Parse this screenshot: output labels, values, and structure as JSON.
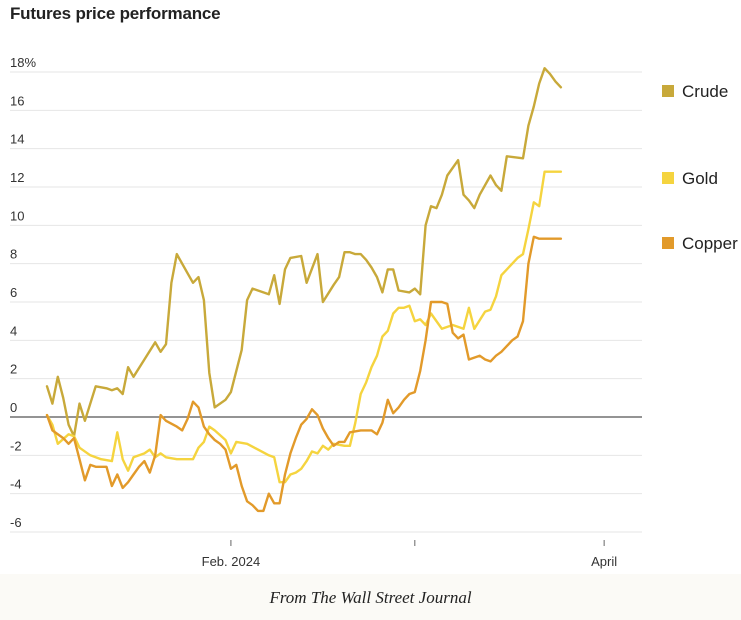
{
  "title": "Futures price performance",
  "credit": "From The Wall Street Journal",
  "colors": {
    "Crude": "#c8a93a",
    "Gold": "#f5d43f",
    "Copper": "#e29a2a",
    "gridline": "#e6e6e6",
    "zeroline": "#555555"
  },
  "chart_data": {
    "type": "line",
    "title": "Futures price performance",
    "xlabel": "",
    "ylabel": "",
    "ylim": [
      -6,
      18
    ],
    "yticks": [
      "18%",
      "16",
      "14",
      "12",
      "10",
      "8",
      "6",
      "4",
      "2",
      "0",
      "-2",
      "-4",
      "-6"
    ],
    "yticks_values": [
      18,
      16,
      14,
      12,
      10,
      8,
      6,
      4,
      2,
      0,
      -2,
      -4,
      -6
    ],
    "xticks": [
      "Feb. 2024",
      "",
      "April"
    ],
    "xticks_values": [
      34,
      68,
      103
    ],
    "x_range": [
      0,
      110
    ],
    "grid": true,
    "legend": "right",
    "series": [
      {
        "name": "Crude",
        "points": [
          [
            0,
            1.6
          ],
          [
            1,
            0.7
          ],
          [
            2,
            2.1
          ],
          [
            3,
            1.0
          ],
          [
            4,
            -0.4
          ],
          [
            5,
            -1.0
          ],
          [
            6,
            0.7
          ],
          [
            7,
            -0.2
          ],
          [
            9,
            1.6
          ],
          [
            11,
            1.5
          ],
          [
            12,
            1.4
          ],
          [
            13,
            1.5
          ],
          [
            14,
            1.2
          ],
          [
            15,
            2.6
          ],
          [
            16,
            2.1
          ],
          [
            18,
            3.0
          ],
          [
            20,
            3.9
          ],
          [
            21,
            3.4
          ],
          [
            22,
            3.8
          ],
          [
            23,
            7.0
          ],
          [
            24,
            8.5
          ],
          [
            26,
            7.5
          ],
          [
            27,
            7.0
          ],
          [
            28,
            7.3
          ],
          [
            29,
            6.1
          ],
          [
            30,
            2.3
          ],
          [
            31,
            0.5
          ],
          [
            33,
            0.9
          ],
          [
            34,
            1.3
          ],
          [
            36,
            3.5
          ],
          [
            37,
            6.1
          ],
          [
            38,
            6.7
          ],
          [
            40,
            6.5
          ],
          [
            41,
            6.4
          ],
          [
            42,
            7.4
          ],
          [
            43,
            5.9
          ],
          [
            44,
            7.7
          ],
          [
            45,
            8.3
          ],
          [
            47,
            8.4
          ],
          [
            48,
            7.0
          ],
          [
            50,
            8.5
          ],
          [
            51,
            6.0
          ],
          [
            53,
            6.9
          ],
          [
            54,
            7.3
          ],
          [
            55,
            8.6
          ],
          [
            56,
            8.6
          ],
          [
            57,
            8.5
          ],
          [
            58,
            8.5
          ],
          [
            59,
            8.2
          ],
          [
            60,
            7.8
          ],
          [
            61,
            7.3
          ],
          [
            62,
            6.5
          ],
          [
            63,
            7.7
          ],
          [
            64,
            7.7
          ],
          [
            65,
            6.6
          ],
          [
            67,
            6.5
          ],
          [
            68,
            6.7
          ],
          [
            69,
            6.4
          ],
          [
            70,
            10.0
          ],
          [
            71,
            11.0
          ],
          [
            72,
            10.9
          ],
          [
            73,
            11.6
          ],
          [
            74,
            12.6
          ],
          [
            76,
            13.4
          ],
          [
            77,
            11.6
          ],
          [
            78,
            11.3
          ],
          [
            79,
            10.9
          ],
          [
            80,
            11.6
          ],
          [
            82,
            12.6
          ],
          [
            83,
            12.1
          ],
          [
            84,
            11.8
          ],
          [
            85,
            13.6
          ],
          [
            88,
            13.5
          ],
          [
            89,
            15.2
          ],
          [
            90,
            16.2
          ],
          [
            91,
            17.4
          ],
          [
            92,
            18.2
          ],
          [
            93,
            17.9
          ],
          [
            94,
            17.5
          ],
          [
            95,
            17.2
          ]
        ]
      },
      {
        "name": "Gold",
        "points": [
          [
            0,
            0.1
          ],
          [
            1,
            -0.4
          ],
          [
            2,
            -1.4
          ],
          [
            4,
            -0.9
          ],
          [
            5,
            -1.0
          ],
          [
            6,
            -1.6
          ],
          [
            8,
            -2.0
          ],
          [
            10,
            -2.2
          ],
          [
            12,
            -2.3
          ],
          [
            13,
            -0.8
          ],
          [
            14,
            -2.2
          ],
          [
            15,
            -2.8
          ],
          [
            16,
            -2.1
          ],
          [
            18,
            -1.9
          ],
          [
            19,
            -1.7
          ],
          [
            20,
            -2.1
          ],
          [
            21,
            -1.9
          ],
          [
            22,
            -2.1
          ],
          [
            24,
            -2.2
          ],
          [
            26,
            -2.2
          ],
          [
            27,
            -2.2
          ],
          [
            28,
            -1.6
          ],
          [
            29,
            -1.3
          ],
          [
            30,
            -0.5
          ],
          [
            31,
            -0.7
          ],
          [
            33,
            -1.2
          ],
          [
            34,
            -1.9
          ],
          [
            35,
            -1.3
          ],
          [
            37,
            -1.4
          ],
          [
            39,
            -1.7
          ],
          [
            41,
            -2.0
          ],
          [
            42,
            -2.1
          ],
          [
            43,
            -3.4
          ],
          [
            44,
            -3.4
          ],
          [
            45,
            -3.0
          ],
          [
            46,
            -2.9
          ],
          [
            47,
            -2.7
          ],
          [
            48,
            -2.3
          ],
          [
            49,
            -1.8
          ],
          [
            50,
            -1.9
          ],
          [
            51,
            -1.5
          ],
          [
            52,
            -1.7
          ],
          [
            53,
            -1.4
          ],
          [
            55,
            -1.5
          ],
          [
            56,
            -1.5
          ],
          [
            57,
            -0.3
          ],
          [
            58,
            1.2
          ],
          [
            59,
            1.8
          ],
          [
            60,
            2.6
          ],
          [
            61,
            3.2
          ],
          [
            62,
            4.2
          ],
          [
            63,
            4.5
          ],
          [
            64,
            5.4
          ],
          [
            65,
            5.7
          ],
          [
            66,
            5.7
          ],
          [
            67,
            5.8
          ],
          [
            68,
            5.0
          ],
          [
            69,
            5.1
          ],
          [
            70,
            4.8
          ],
          [
            71,
            5.4
          ],
          [
            73,
            4.6
          ],
          [
            75,
            4.8
          ],
          [
            77,
            4.6
          ],
          [
            78,
            5.7
          ],
          [
            79,
            4.6
          ],
          [
            81,
            5.5
          ],
          [
            82,
            5.6
          ],
          [
            83,
            6.3
          ],
          [
            84,
            7.4
          ],
          [
            86,
            8.0
          ],
          [
            87,
            8.3
          ],
          [
            88,
            8.5
          ],
          [
            89,
            9.8
          ],
          [
            90,
            11.2
          ],
          [
            91,
            11.0
          ],
          [
            92,
            12.8
          ],
          [
            95,
            12.8
          ]
        ]
      },
      {
        "name": "Copper",
        "points": [
          [
            0,
            0.1
          ],
          [
            1,
            -0.7
          ],
          [
            3,
            -1.1
          ],
          [
            4,
            -1.4
          ],
          [
            5,
            -1.1
          ],
          [
            6,
            -2.2
          ],
          [
            7,
            -3.3
          ],
          [
            8,
            -2.5
          ],
          [
            9,
            -2.6
          ],
          [
            11,
            -2.6
          ],
          [
            12,
            -3.6
          ],
          [
            13,
            -3.0
          ],
          [
            14,
            -3.7
          ],
          [
            15,
            -3.4
          ],
          [
            16,
            -3.0
          ],
          [
            17,
            -2.6
          ],
          [
            18,
            -2.3
          ],
          [
            19,
            -2.9
          ],
          [
            20,
            -2.0
          ],
          [
            21,
            0.1
          ],
          [
            22,
            -0.2
          ],
          [
            24,
            -0.5
          ],
          [
            25,
            -0.7
          ],
          [
            26,
            -0.1
          ],
          [
            27,
            0.8
          ],
          [
            28,
            0.5
          ],
          [
            29,
            -0.5
          ],
          [
            30,
            -0.9
          ],
          [
            31,
            -1.2
          ],
          [
            32,
            -1.4
          ],
          [
            33,
            -1.7
          ],
          [
            34,
            -2.7
          ],
          [
            35,
            -2.5
          ],
          [
            36,
            -3.6
          ],
          [
            37,
            -4.4
          ],
          [
            38,
            -4.6
          ],
          [
            39,
            -4.9
          ],
          [
            40,
            -4.9
          ],
          [
            41,
            -4.0
          ],
          [
            42,
            -4.5
          ],
          [
            43,
            -4.5
          ],
          [
            44,
            -3.0
          ],
          [
            45,
            -1.9
          ],
          [
            46,
            -1.1
          ],
          [
            47,
            -0.4
          ],
          [
            48,
            -0.1
          ],
          [
            49,
            0.4
          ],
          [
            50,
            0.1
          ],
          [
            51,
            -0.6
          ],
          [
            52,
            -1.1
          ],
          [
            53,
            -1.5
          ],
          [
            54,
            -1.3
          ],
          [
            55,
            -1.3
          ],
          [
            56,
            -0.8
          ],
          [
            58,
            -0.7
          ],
          [
            60,
            -0.7
          ],
          [
            61,
            -0.9
          ],
          [
            62,
            -0.3
          ],
          [
            63,
            0.9
          ],
          [
            64,
            0.2
          ],
          [
            65,
            0.5
          ],
          [
            66,
            0.9
          ],
          [
            67,
            1.2
          ],
          [
            68,
            1.3
          ],
          [
            69,
            2.4
          ],
          [
            70,
            4.0
          ],
          [
            71,
            6.0
          ],
          [
            72,
            6.0
          ],
          [
            73,
            6.0
          ],
          [
            74,
            5.9
          ],
          [
            75,
            4.4
          ],
          [
            76,
            4.1
          ],
          [
            77,
            4.3
          ],
          [
            78,
            3.0
          ],
          [
            80,
            3.2
          ],
          [
            81,
            3.0
          ],
          [
            82,
            2.9
          ],
          [
            83,
            3.2
          ],
          [
            84,
            3.4
          ],
          [
            85,
            3.7
          ],
          [
            86,
            4.0
          ],
          [
            87,
            4.2
          ],
          [
            88,
            5.0
          ],
          [
            89,
            8.0
          ],
          [
            90,
            9.4
          ],
          [
            91,
            9.3
          ],
          [
            95,
            9.3
          ]
        ]
      }
    ]
  }
}
